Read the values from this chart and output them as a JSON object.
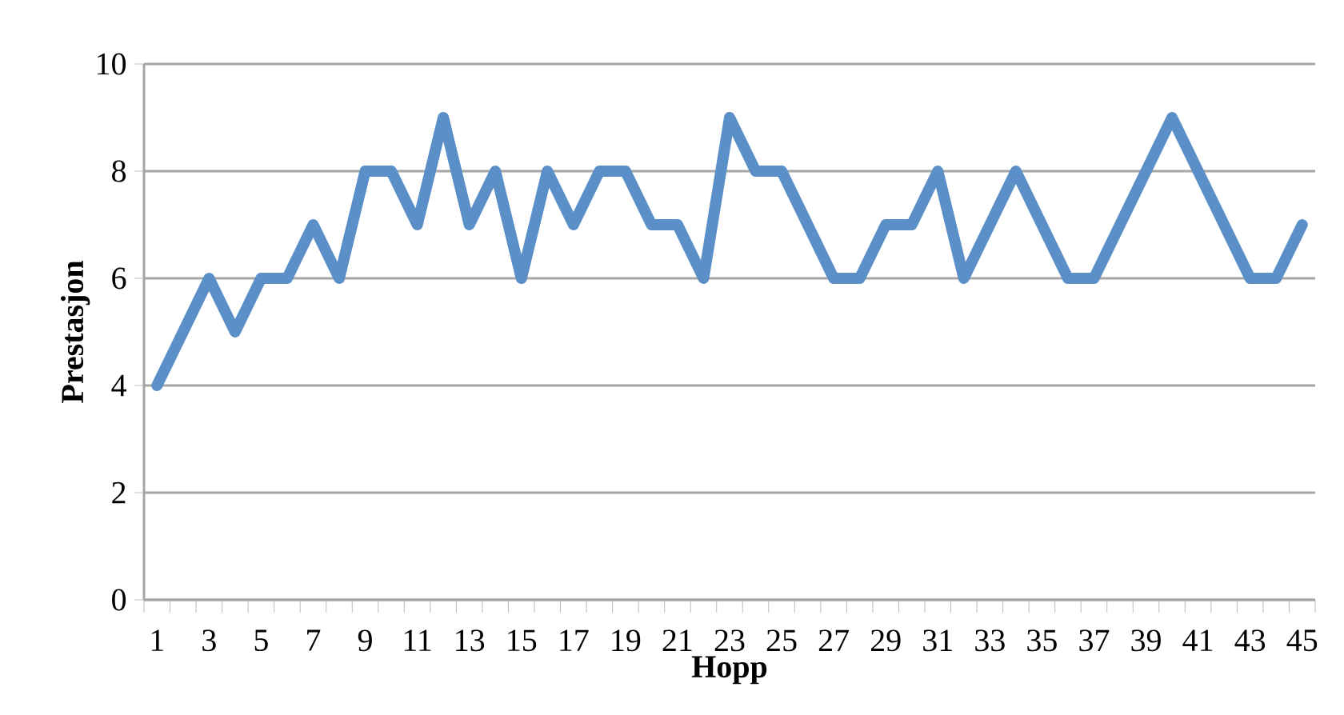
{
  "chart_data": {
    "type": "line",
    "xlabel": "Hopp",
    "ylabel": "Prestasjon",
    "categories": [
      "1",
      null,
      "3",
      null,
      "5",
      null,
      "7",
      null,
      "9",
      null,
      "11",
      null,
      "13",
      null,
      "15",
      null,
      "17",
      null,
      "19",
      null,
      "21",
      null,
      "23",
      null,
      "25",
      null,
      "27",
      null,
      "29",
      null,
      "31",
      null,
      "33",
      null,
      "35",
      null,
      "37",
      null,
      "39",
      null,
      "41",
      null,
      "43",
      null,
      "45"
    ],
    "series": [
      {
        "color": "#5b8fc7",
        "values": [
          4,
          5,
          6,
          5,
          6,
          6,
          7,
          6,
          8,
          8,
          7,
          9,
          7,
          8,
          6,
          8,
          7,
          8,
          8,
          7,
          7,
          6,
          9,
          8,
          8,
          7,
          6,
          6,
          7,
          7,
          8,
          6,
          7,
          8,
          7,
          6,
          6,
          7,
          8,
          9,
          8,
          7,
          6,
          6,
          7
        ]
      }
    ],
    "ylim": [
      0,
      10
    ],
    "yticks": [
      0,
      2,
      4,
      6,
      8,
      10
    ],
    "grid": "y"
  }
}
